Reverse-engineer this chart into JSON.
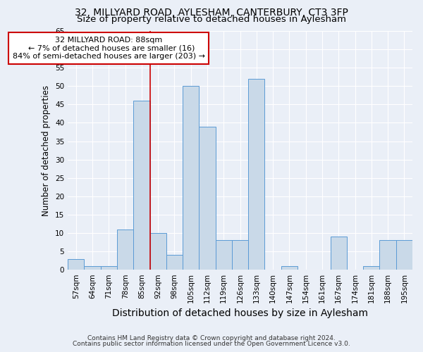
{
  "title1": "32, MILLYARD ROAD, AYLESHAM, CANTERBURY, CT3 3FP",
  "title2": "Size of property relative to detached houses in Aylesham",
  "xlabel": "Distribution of detached houses by size in Aylesham",
  "ylabel": "Number of detached properties",
  "footnote1": "Contains HM Land Registry data © Crown copyright and database right 2024.",
  "footnote2": "Contains public sector information licensed under the Open Government Licence v3.0.",
  "annotation_line1": "32 MILLYARD ROAD: 88sqm",
  "annotation_line2": "← 7% of detached houses are smaller (16)",
  "annotation_line3": "84% of semi-detached houses are larger (203) →",
  "bar_labels": [
    "57sqm",
    "64sqm",
    "71sqm",
    "78sqm",
    "85sqm",
    "92sqm",
    "98sqm",
    "105sqm",
    "112sqm",
    "119sqm",
    "126sqm",
    "133sqm",
    "140sqm",
    "147sqm",
    "154sqm",
    "161sqm",
    "167sqm",
    "174sqm",
    "181sqm",
    "188sqm",
    "195sqm"
  ],
  "bar_values": [
    3,
    1,
    1,
    11,
    46,
    10,
    4,
    50,
    39,
    8,
    8,
    52,
    0,
    1,
    0,
    0,
    9,
    0,
    1,
    8,
    8
  ],
  "property_line_x": 4.5,
  "bar_color": "#c9d9e8",
  "bar_edge_color": "#5b9bd5",
  "bg_color": "#eaeff7",
  "annotation_box_color": "white",
  "annotation_box_edge": "#cc0000",
  "vline_color": "#cc0000",
  "ylim": [
    0,
    65
  ],
  "yticks": [
    0,
    5,
    10,
    15,
    20,
    25,
    30,
    35,
    40,
    45,
    50,
    55,
    60,
    65
  ],
  "grid_color": "#ffffff",
  "title_fontsize": 10,
  "subtitle_fontsize": 9.5,
  "ylabel_fontsize": 8.5,
  "xlabel_fontsize": 10,
  "tick_fontsize": 7.5,
  "annotation_fontsize": 8,
  "footnote_fontsize": 6.5
}
